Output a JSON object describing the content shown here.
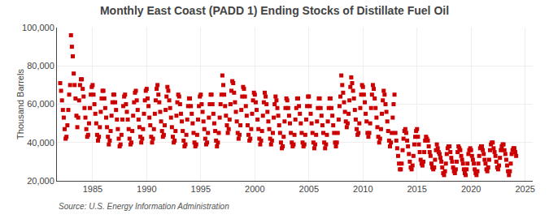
{
  "chart_data": {
    "type": "scatter",
    "title": "Monthly East Coast (PADD 1) Ending Stocks of Distillate Fuel Oil",
    "ylabel": "Thousand Barrels",
    "source": "Source: U.S. Energy Information Administration",
    "color": "#cc0000",
    "marker": "square",
    "grid": true,
    "xlim": [
      1981.7,
      2025.7
    ],
    "xticks": [
      1985,
      1990,
      1995,
      2000,
      2005,
      2010,
      2015,
      2020,
      2025
    ],
    "ylim": [
      20000,
      100000
    ],
    "yticks": [
      {
        "value": 20000,
        "label": "20,000"
      },
      {
        "value": 40000,
        "label": "40,000"
      },
      {
        "value": 60000,
        "label": "60,000"
      },
      {
        "value": 80000,
        "label": "80,000"
      },
      {
        "value": 100000,
        "label": "100,000"
      }
    ],
    "x": [
      1982,
      1982.0833333333333,
      1982.1666666666667,
      1982.25,
      1982.3333333333333,
      1982.4166666666667,
      1982.5,
      1982.5833333333333,
      1982.6666666666667,
      1982.75,
      1982.8333333333333,
      1982.9166666666667,
      1983,
      1983.0833333333333,
      1983.1666666666667,
      1983.25,
      1983.3333333333333,
      1983.4166666666667,
      1983.5,
      1983.5833333333333,
      1983.6666666666667,
      1983.75,
      1983.8333333333333,
      1983.9166666666667,
      1984,
      1984.0833333333333,
      1984.1666666666667,
      1984.25,
      1984.3333333333333,
      1984.4166666666667,
      1984.5,
      1984.5833333333333,
      1984.6666666666667,
      1984.75,
      1984.8333333333333,
      1984.9166666666667,
      1985,
      1985.0833333333333,
      1985.1666666666667,
      1985.25,
      1985.3333333333333,
      1985.4166666666667,
      1985.5,
      1985.5833333333333,
      1985.6666666666667,
      1985.75,
      1985.8333333333333,
      1985.9166666666667,
      1986,
      1986.0833333333333,
      1986.1666666666667,
      1986.25,
      1986.3333333333333,
      1986.4166666666667,
      1986.5,
      1986.5833333333333,
      1986.6666666666667,
      1986.75,
      1986.8333333333333,
      1986.9166666666667,
      1987,
      1987.0833333333333,
      1987.1666666666667,
      1987.25,
      1987.3333333333333,
      1987.4166666666667,
      1987.5,
      1987.5833333333333,
      1987.6666666666667,
      1987.75,
      1987.8333333333333,
      1987.9166666666667,
      1988,
      1988.0833333333333,
      1988.1666666666667,
      1988.25,
      1988.3333333333333,
      1988.4166666666667,
      1988.5,
      1988.5833333333333,
      1988.6666666666667,
      1988.75,
      1988.8333333333333,
      1988.9166666666667,
      1989,
      1989.0833333333333,
      1989.1666666666667,
      1989.25,
      1989.3333333333333,
      1989.4166666666667,
      1989.5,
      1989.5833333333333,
      1989.6666666666667,
      1989.75,
      1989.8333333333333,
      1989.9166666666667,
      1990,
      1990.0833333333333,
      1990.1666666666667,
      1990.25,
      1990.3333333333333,
      1990.4166666666667,
      1990.5,
      1990.5833333333333,
      1990.6666666666667,
      1990.75,
      1990.8333333333333,
      1990.9166666666667,
      1991,
      1991.0833333333333,
      1991.1666666666667,
      1991.25,
      1991.3333333333333,
      1991.4166666666667,
      1991.5,
      1991.5833333333333,
      1991.6666666666667,
      1991.75,
      1991.8333333333333,
      1991.9166666666667,
      1992,
      1992.0833333333333,
      1992.1666666666667,
      1992.25,
      1992.3333333333333,
      1992.4166666666667,
      1992.5,
      1992.5833333333333,
      1992.6666666666667,
      1992.75,
      1992.8333333333333,
      1992.9166666666667,
      1993,
      1993.0833333333333,
      1993.1666666666667,
      1993.25,
      1993.3333333333333,
      1993.4166666666667,
      1993.5,
      1993.5833333333333,
      1993.6666666666667,
      1993.75,
      1993.8333333333333,
      1993.9166666666667,
      1994,
      1994.0833333333333,
      1994.1666666666667,
      1994.25,
      1994.3333333333333,
      1994.4166666666667,
      1994.5,
      1994.5833333333333,
      1994.6666666666667,
      1994.75,
      1994.8333333333333,
      1994.9166666666667,
      1995,
      1995.0833333333333,
      1995.1666666666667,
      1995.25,
      1995.3333333333333,
      1995.4166666666667,
      1995.5,
      1995.5833333333333,
      1995.6666666666667,
      1995.75,
      1995.8333333333333,
      1995.9166666666667,
      1996,
      1996.0833333333333,
      1996.1666666666667,
      1996.25,
      1996.3333333333333,
      1996.4166666666667,
      1996.5,
      1996.5833333333333,
      1996.6666666666667,
      1996.75,
      1996.8333333333333,
      1996.9166666666667,
      1997,
      1997.0833333333333,
      1997.1666666666667,
      1997.25,
      1997.3333333333333,
      1997.4166666666667,
      1997.5,
      1997.5833333333333,
      1997.6666666666667,
      1997.75,
      1997.8333333333333,
      1997.9166666666667,
      1998,
      1998.0833333333333,
      1998.1666666666667,
      1998.25,
      1998.3333333333333,
      1998.4166666666667,
      1998.5,
      1998.5833333333333,
      1998.6666666666667,
      1998.75,
      1998.8333333333333,
      1998.9166666666667,
      1999,
      1999.0833333333333,
      1999.1666666666667,
      1999.25,
      1999.3333333333333,
      1999.4166666666667,
      1999.5,
      1999.5833333333333,
      1999.6666666666667,
      1999.75,
      1999.8333333333333,
      1999.9166666666667,
      2000,
      2000.0833333333333,
      2000.1666666666667,
      2000.25,
      2000.3333333333333,
      2000.4166666666667,
      2000.5,
      2000.5833333333333,
      2000.6666666666667,
      2000.75,
      2000.8333333333333,
      2000.9166666666667,
      2001,
      2001.0833333333333,
      2001.1666666666667,
      2001.25,
      2001.3333333333333,
      2001.4166666666667,
      2001.5,
      2001.5833333333333,
      2001.6666666666667,
      2001.75,
      2001.8333333333333,
      2001.9166666666667,
      2002,
      2002.0833333333333,
      2002.1666666666667,
      2002.25,
      2002.3333333333333,
      2002.4166666666667,
      2002.5,
      2002.5833333333333,
      2002.6666666666667,
      2002.75,
      2002.8333333333333,
      2002.9166666666667,
      2003,
      2003.0833333333333,
      2003.1666666666667,
      2003.25,
      2003.3333333333333,
      2003.4166666666667,
      2003.5,
      2003.5833333333333,
      2003.6666666666667,
      2003.75,
      2003.8333333333333,
      2003.9166666666667,
      2004,
      2004.0833333333333,
      2004.1666666666667,
      2004.25,
      2004.3333333333333,
      2004.4166666666667,
      2004.5,
      2004.5833333333333,
      2004.6666666666667,
      2004.75,
      2004.8333333333333,
      2004.9166666666667,
      2005,
      2005.0833333333333,
      2005.1666666666667,
      2005.25,
      2005.3333333333333,
      2005.4166666666667,
      2005.5,
      2005.5833333333333,
      2005.6666666666667,
      2005.75,
      2005.8333333333333,
      2005.9166666666667,
      2006,
      2006.0833333333333,
      2006.1666666666667,
      2006.25,
      2006.3333333333333,
      2006.4166666666667,
      2006.5,
      2006.5833333333333,
      2006.6666666666667,
      2006.75,
      2006.8333333333333,
      2006.9166666666667,
      2007,
      2007.0833333333333,
      2007.1666666666667,
      2007.25,
      2007.3333333333333,
      2007.4166666666667,
      2007.5,
      2007.5833333333333,
      2007.6666666666667,
      2007.75,
      2007.8333333333333,
      2007.9166666666667,
      2008,
      2008.0833333333333,
      2008.1666666666667,
      2008.25,
      2008.3333333333333,
      2008.4166666666667,
      2008.5,
      2008.5833333333333,
      2008.6666666666667,
      2008.75,
      2008.8333333333333,
      2008.9166666666667,
      2009,
      2009.0833333333333,
      2009.1666666666667,
      2009.25,
      2009.3333333333333,
      2009.4166666666667,
      2009.5,
      2009.5833333333333,
      2009.6666666666667,
      2009.75,
      2009.8333333333333,
      2009.9166666666667,
      2010,
      2010.0833333333333,
      2010.1666666666667,
      2010.25,
      2010.3333333333333,
      2010.4166666666667,
      2010.5,
      2010.5833333333333,
      2010.6666666666667,
      2010.75,
      2010.8333333333333,
      2010.9166666666667,
      2011,
      2011.0833333333333,
      2011.1666666666667,
      2011.25,
      2011.3333333333333,
      2011.4166666666667,
      2011.5,
      2011.5833333333333,
      2011.6666666666667,
      2011.75,
      2011.8333333333333,
      2011.9166666666667,
      2012,
      2012.0833333333333,
      2012.1666666666667,
      2012.25,
      2012.3333333333333,
      2012.4166666666667,
      2012.5,
      2012.5833333333333,
      2012.6666666666667,
      2012.75,
      2012.8333333333333,
      2012.9166666666667,
      2013,
      2013.0833333333333,
      2013.1666666666667,
      2013.25,
      2013.3333333333333,
      2013.4166666666667,
      2013.5,
      2013.5833333333333,
      2013.6666666666667,
      2013.75,
      2013.8333333333333,
      2013.9166666666667,
      2014,
      2014.0833333333333,
      2014.1666666666667,
      2014.25,
      2014.3333333333333,
      2014.4166666666667,
      2014.5,
      2014.5833333333333,
      2014.6666666666667,
      2014.75,
      2014.8333333333333,
      2014.9166666666667,
      2015,
      2015.0833333333333,
      2015.1666666666667,
      2015.25,
      2015.3333333333333,
      2015.4166666666667,
      2015.5,
      2015.5833333333333,
      2015.6666666666667,
      2015.75,
      2015.8333333333333,
      2015.9166666666667,
      2016,
      2016.0833333333333,
      2016.1666666666667,
      2016.25,
      2016.3333333333333,
      2016.4166666666667,
      2016.5,
      2016.5833333333333,
      2016.6666666666667,
      2016.75,
      2016.8333333333333,
      2016.9166666666667,
      2017,
      2017.0833333333333,
      2017.1666666666667,
      2017.25,
      2017.3333333333333,
      2017.4166666666667,
      2017.5,
      2017.5833333333333,
      2017.6666666666667,
      2017.75,
      2017.8333333333333,
      2017.9166666666667,
      2018,
      2018.0833333333333,
      2018.1666666666667,
      2018.25,
      2018.3333333333333,
      2018.4166666666667,
      2018.5,
      2018.5833333333333,
      2018.6666666666667,
      2018.75,
      2018.8333333333333,
      2018.9166666666667,
      2019,
      2019.0833333333333,
      2019.1666666666667,
      2019.25,
      2019.3333333333333,
      2019.4166666666667,
      2019.5,
      2019.5833333333333,
      2019.6666666666667,
      2019.75,
      2019.8333333333333,
      2019.9166666666667,
      2020,
      2020.0833333333333,
      2020.1666666666667,
      2020.25,
      2020.3333333333333,
      2020.4166666666667,
      2020.5,
      2020.5833333333333,
      2020.6666666666667,
      2020.75,
      2020.8333333333333,
      2020.9166666666667,
      2021,
      2021.0833333333333,
      2021.1666666666667,
      2021.25,
      2021.3333333333333,
      2021.4166666666667,
      2021.5,
      2021.5833333333333,
      2021.6666666666667,
      2021.75,
      2021.8333333333333,
      2021.9166666666667,
      2022,
      2022.0833333333333,
      2022.1666666666667,
      2022.25,
      2022.3333333333333,
      2022.4166666666667,
      2022.5,
      2022.5833333333333,
      2022.6666666666667,
      2022.75,
      2022.8333333333333,
      2022.9166666666667,
      2023,
      2023.0833333333333,
      2023.1666666666667,
      2023.25,
      2023.3333333333333,
      2023.4166666666667,
      2023.5,
      2023.5833333333333,
      2023.6666666666667,
      2023.75,
      2023.8333333333333,
      2023.9166666666667,
      2024,
      2024.0833333333333,
      2024.1666666666667
    ],
    "values": [
      71000,
      67000,
      62000,
      57000,
      53000,
      47000,
      42000,
      43000,
      49000,
      57000,
      65000,
      70000,
      96000,
      90000,
      85000,
      76000,
      70000,
      63000,
      54000,
      48000,
      53000,
      62000,
      70000,
      73000,
      73000,
      68000,
      64000,
      58000,
      53000,
      47000,
      43000,
      44000,
      50000,
      58000,
      65000,
      69000,
      70000,
      65000,
      60000,
      55000,
      50000,
      44000,
      41000,
      43000,
      48000,
      56000,
      63000,
      67000,
      67000,
      63000,
      58000,
      53000,
      48000,
      43000,
      39000,
      41000,
      46000,
      54000,
      61000,
      65000,
      65000,
      61000,
      57000,
      52000,
      47000,
      42000,
      38000,
      39000,
      44000,
      52000,
      59000,
      64000,
      65000,
      60000,
      56000,
      52000,
      47000,
      42000,
      39000,
      40000,
      46000,
      54000,
      61000,
      66000,
      67000,
      62000,
      57000,
      52000,
      48000,
      43000,
      40000,
      42000,
      47000,
      55000,
      62000,
      67000,
      68000,
      63000,
      59000,
      53000,
      49000,
      43000,
      40000,
      42000,
      47000,
      55000,
      62000,
      68000,
      70000,
      65000,
      61000,
      56000,
      51000,
      46000,
      43000,
      44000,
      49000,
      57000,
      64000,
      69000,
      67000,
      62000,
      58000,
      53000,
      48000,
      43000,
      40000,
      41000,
      46000,
      54000,
      61000,
      65000,
      64000,
      60000,
      55000,
      51000,
      46000,
      41000,
      38000,
      39000,
      44000,
      52000,
      59000,
      63000,
      63000,
      59000,
      55000,
      50000,
      45000,
      40000,
      38000,
      39000,
      44000,
      52000,
      59000,
      64000,
      65000,
      60000,
      56000,
      51000,
      47000,
      42000,
      39000,
      40000,
      45000,
      53000,
      60000,
      65000,
      65000,
      60000,
      55000,
      50000,
      46000,
      41000,
      38000,
      40000,
      45000,
      53000,
      60000,
      65000,
      75000,
      70000,
      65000,
      59000,
      54000,
      49000,
      45000,
      47000,
      52000,
      60000,
      67000,
      72000,
      71000,
      66000,
      61000,
      56000,
      51000,
      45000,
      42000,
      44000,
      49000,
      57000,
      64000,
      69000,
      68000,
      64000,
      59000,
      54000,
      49000,
      44000,
      41000,
      42000,
      47000,
      55000,
      62000,
      66000,
      65000,
      61000,
      57000,
      52000,
      47000,
      42000,
      39000,
      41000,
      46000,
      54000,
      61000,
      66000,
      64000,
      60000,
      56000,
      51000,
      47000,
      42000,
      39000,
      41000,
      45000,
      53000,
      60000,
      64000,
      62000,
      58000,
      54000,
      49000,
      45000,
      40000,
      37000,
      38000,
      43000,
      51000,
      58000,
      63000,
      62000,
      58000,
      54000,
      50000,
      45000,
      40000,
      38000,
      39000,
      44000,
      52000,
      58000,
      63000,
      63000,
      59000,
      55000,
      50000,
      45000,
      40000,
      38000,
      39000,
      44000,
      52000,
      59000,
      64000,
      64000,
      59000,
      55000,
      50000,
      45000,
      40000,
      37000,
      39000,
      44000,
      51000,
      58000,
      63000,
      63000,
      58000,
      54000,
      49000,
      45000,
      40000,
      37000,
      39000,
      44000,
      51000,
      58000,
      63000,
      63000,
      58000,
      54000,
      49000,
      45000,
      40000,
      38000,
      40000,
      45000,
      52000,
      59000,
      64000,
      75000,
      70000,
      66000,
      61000,
      56000,
      51000,
      48000,
      50000,
      55000,
      62000,
      69000,
      74000,
      71000,
      67000,
      63000,
      57000,
      52000,
      47000,
      44000,
      45000,
      50000,
      58000,
      65000,
      70000,
      69000,
      65000,
      61000,
      55000,
      51000,
      45000,
      43000,
      45000,
      50000,
      58000,
      65000,
      70000,
      68000,
      63000,
      58000,
      53000,
      48000,
      43000,
      40000,
      42000,
      47000,
      55000,
      62000,
      67000,
      65000,
      60000,
      56000,
      51000,
      46000,
      41000,
      38000,
      40000,
      45000,
      53000,
      60000,
      65000,
      45000,
      41000,
      37000,
      33000,
      29000,
      26000,
      26000,
      29000,
      36000,
      42000,
      46000,
      47000,
      45000,
      41000,
      38000,
      34000,
      30000,
      27000,
      26000,
      28000,
      33000,
      39000,
      43000,
      46000,
      47000,
      43000,
      39000,
      35000,
      31000,
      29000,
      28000,
      30000,
      35000,
      41000,
      43000,
      42000,
      41000,
      38000,
      35000,
      33000,
      29000,
      27000,
      26000,
      27000,
      31000,
      36000,
      39000,
      37000,
      35000,
      34000,
      32000,
      30000,
      27000,
      24000,
      23000,
      25000,
      29000,
      34000,
      37000,
      38000,
      38000,
      35000,
      32000,
      30000,
      27000,
      25000,
      24000,
      26000,
      30000,
      35000,
      38000,
      37000,
      36000,
      33000,
      31000,
      29000,
      26000,
      24000,
      23000,
      26000,
      29000,
      34000,
      36000,
      37000,
      36000,
      33000,
      31000,
      29000,
      26000,
      24000,
      23000,
      25000,
      29000,
      33000,
      37000,
      38000,
      38000,
      36000,
      34000,
      31000,
      29000,
      26000,
      25000,
      27000,
      31000,
      36000,
      39000,
      40000,
      40000,
      37000,
      35000,
      33000,
      30000,
      27000,
      26000,
      28000,
      32000,
      36000,
      38000,
      39000,
      39000,
      36000,
      34000,
      31000,
      28000,
      25000,
      23000,
      25000,
      29000,
      34000,
      36000,
      37000,
      37000,
      35000,
      33000
    ]
  }
}
